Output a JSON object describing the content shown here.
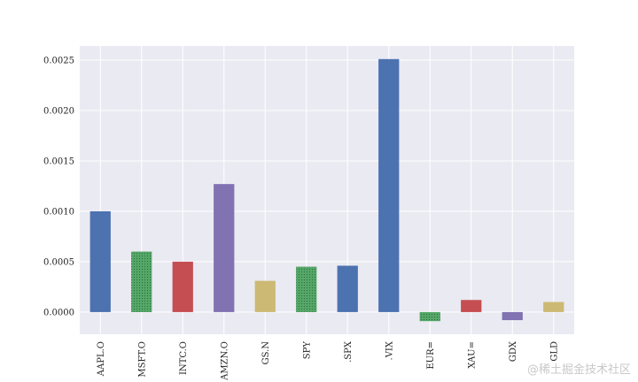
{
  "chart_data": {
    "type": "bar",
    "categories": [
      "AAPL.O",
      "MSFT.O",
      "INTC.O",
      "AMZN.O",
      "GS.N",
      "SPY",
      ".SPX",
      ".VIX",
      "EUR=",
      "XAU=",
      "GDX",
      "GLD"
    ],
    "values": [
      0.001,
      0.0006,
      0.0005,
      0.00127,
      0.00031,
      0.00045,
      0.00046,
      0.00251,
      -9e-05,
      0.00012,
      -8e-05,
      0.0001
    ],
    "colors": [
      "#4C72B0",
      "#55A868",
      "#C44E52",
      "#8172B2",
      "#CCB974",
      "#55A868",
      "#4C72B0",
      "#4C72B0",
      "#55A868",
      "#C44E52",
      "#8172B2",
      "#CCB974"
    ],
    "patterns": [
      "solid",
      "dotted",
      "solid",
      "solid",
      "solid",
      "dotted",
      "solid",
      "solid",
      "dotted",
      "solid",
      "solid",
      "solid"
    ],
    "yticks": [
      "0.0000",
      "0.0005",
      "0.0010",
      "0.0015",
      "0.0020",
      "0.0025"
    ],
    "ylim": [
      -0.00022,
      0.00264
    ],
    "grid": true,
    "legend": "none",
    "title": "",
    "xlabel": "",
    "ylabel": ""
  },
  "watermark": "@稀土掘金技术社区"
}
